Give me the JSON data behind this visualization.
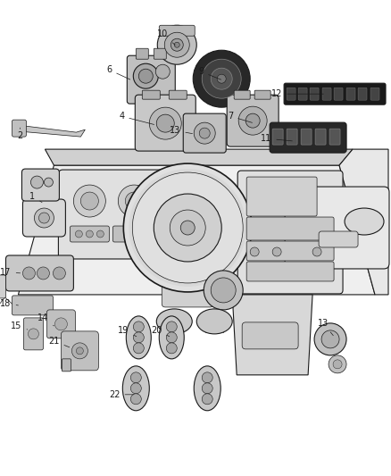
{
  "bg_color": "#ffffff",
  "fig_width": 4.38,
  "fig_height": 5.33,
  "dpi": 100,
  "lc": "#1a1a1a",
  "lc_gray": "#555555",
  "fc_light": "#f5f5f5",
  "fc_mid": "#d8d8d8",
  "fc_dark": "#aaaaaa",
  "fc_vdark": "#666666",
  "lw_thin": 0.5,
  "lw_med": 0.8,
  "lw_thick": 1.2,
  "label_fs": 7.0,
  "leader_lw": 0.5
}
